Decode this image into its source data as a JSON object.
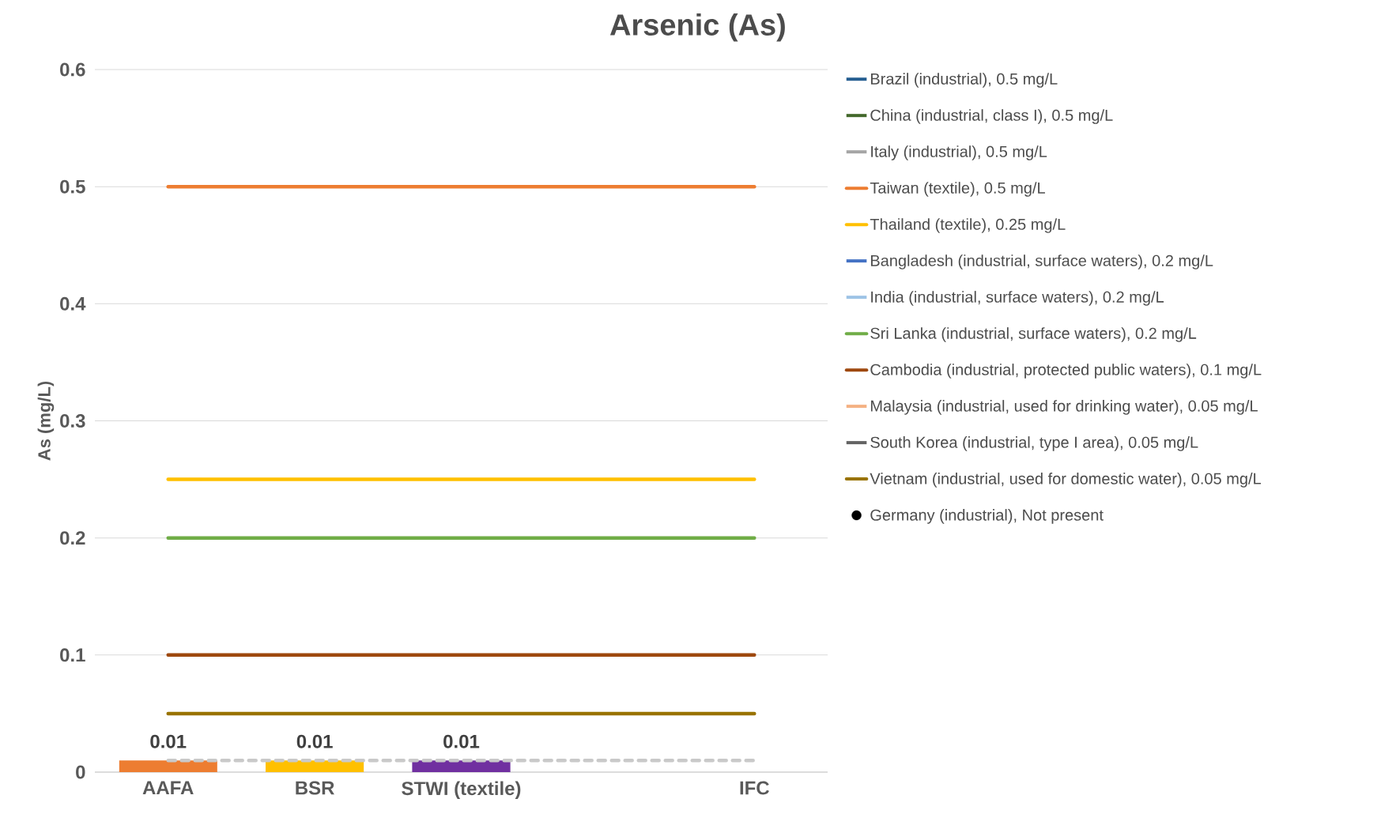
{
  "chart_data": {
    "type": "line",
    "title": "Arsenic (As)",
    "ylabel": "As (mg/L)",
    "categories": [
      "AAFA",
      "BSR",
      "STWI (textile)",
      null,
      "IFC"
    ],
    "ylim": [
      0,
      0.6
    ],
    "yticks": [
      0,
      0.1,
      0.2,
      0.3,
      0.4,
      0.5,
      0.6
    ],
    "grid": "y",
    "legend": "right",
    "series": [
      {
        "type": "bar",
        "colors": [
          "#ed7d31",
          "#ffc000",
          "#7030a0",
          "#a5a5a5",
          "#a5a5a5"
        ],
        "values": [
          0.01,
          0.01,
          0.01,
          null,
          null
        ],
        "value_labels": [
          "0.01",
          "0.01",
          "0.01",
          null,
          null
        ]
      },
      {
        "name": "Brazil (industrial), 0.5 mg/L",
        "color": "#255e91",
        "line_style": "solid",
        "values": [
          null,
          null,
          null,
          null,
          null
        ]
      },
      {
        "name": "China (industrial, class I), 0.5 mg/L",
        "color": "#43682b",
        "line_style": "solid",
        "values": [
          null,
          null,
          null,
          null,
          null
        ]
      },
      {
        "name": "Italy (industrial), 0.5 mg/L",
        "color": "#a5a5a5",
        "line_style": "solid",
        "values": [
          null,
          null,
          null,
          null,
          null
        ]
      },
      {
        "name": "Taiwan (textile), 0.5 mg/L",
        "color": "#ed7d31",
        "line_style": "solid",
        "values": [
          0.5,
          0.5,
          0.5,
          0.5,
          0.5
        ]
      },
      {
        "name": "Thailand (textile), 0.25 mg/L",
        "color": "#ffc000",
        "line_style": "solid",
        "values": [
          0.25,
          0.25,
          0.25,
          0.25,
          0.25
        ]
      },
      {
        "name": "Bangladesh (industrial, surface waters), 0.2 mg/L",
        "color": "#4472c4",
        "line_style": "solid",
        "values": [
          null,
          null,
          null,
          null,
          null
        ]
      },
      {
        "name": "India (industrial, surface waters), 0.2 mg/L",
        "color": "#9dc3e6",
        "line_style": "solid",
        "values": [
          null,
          null,
          null,
          null,
          null
        ]
      },
      {
        "name": "Sri Lanka (industrial, surface waters), 0.2 mg/L",
        "color": "#70ad47",
        "line_style": "solid",
        "values": [
          0.2,
          0.2,
          0.2,
          0.2,
          0.2
        ]
      },
      {
        "name": "Cambodia (industrial, protected public waters), 0.1 mg/L",
        "color": "#9e480e",
        "line_style": "solid",
        "values": [
          0.1,
          0.1,
          0.1,
          0.1,
          0.1
        ]
      },
      {
        "name": "Malaysia (industrial, used for drinking water), 0.05 mg/L",
        "color": "#f4b183",
        "line_style": "solid",
        "values": [
          null,
          null,
          null,
          null,
          null
        ]
      },
      {
        "name": "South Korea (industrial, type I area), 0.05 mg/L",
        "color": "#636363",
        "line_style": "solid",
        "values": [
          null,
          null,
          null,
          null,
          null
        ]
      },
      {
        "name": "Vietnam (industrial, used for domestic water), 0.05 mg/L",
        "color": "#997300",
        "line_style": "solid",
        "values": [
          0.05,
          0.05,
          0.05,
          0.05,
          0.05
        ]
      },
      {
        "type": "scatter",
        "name": "Germany (industrial), Not present",
        "color": "#000000",
        "marker": "circle",
        "values": [
          null,
          null,
          null,
          null,
          null
        ]
      },
      {
        "color": "#c9c9c9",
        "line_style": "dashed",
        "values": [
          0.01,
          0.01,
          0.01,
          0.01,
          0.01
        ]
      }
    ]
  }
}
